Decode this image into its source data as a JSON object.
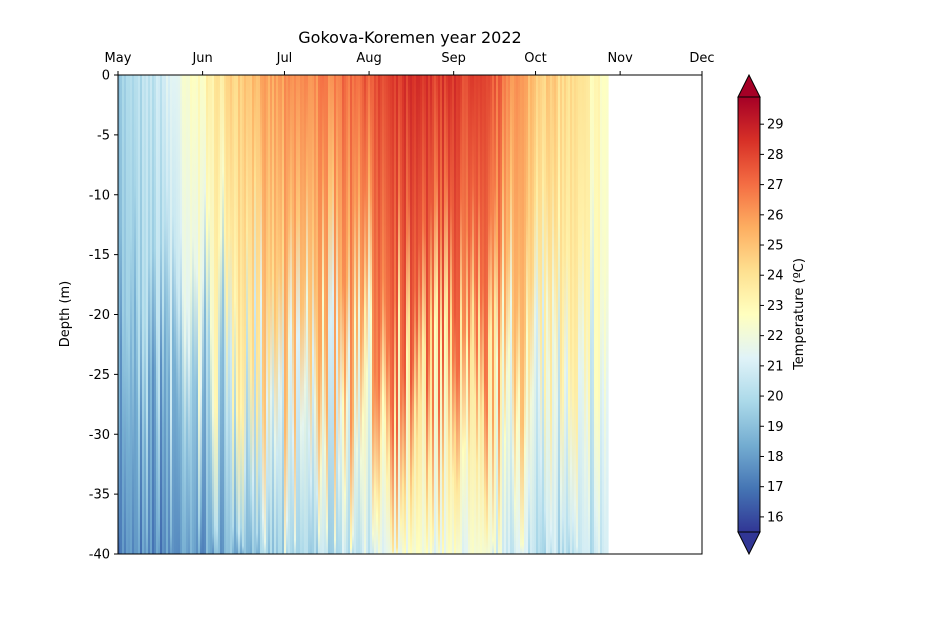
{
  "chart_data": {
    "type": "heatmap",
    "title": "Gokova-Koremen year 2022",
    "xlabel": "",
    "ylabel": "Depth (m)",
    "x_ticks": [
      "May",
      "Jun",
      "Jul",
      "Aug",
      "Sep",
      "Oct",
      "Nov",
      "Dec"
    ],
    "x_axis_position": "top",
    "x_range": [
      "2022-05-01",
      "2022-12-01"
    ],
    "data_end": "2022-10-27",
    "y_ticks": [
      0,
      -5,
      -10,
      -15,
      -20,
      -25,
      -30,
      -35,
      -40
    ],
    "ylim": [
      -40,
      0
    ],
    "colorbar": {
      "label": "Temperature (ºC)",
      "ticks": [
        16,
        17,
        18,
        19,
        20,
        21,
        22,
        23,
        24,
        25,
        26,
        27,
        28,
        29
      ],
      "range": [
        15.5,
        29.9
      ],
      "extend": "both",
      "colormap": "RdYlBu_r"
    },
    "grid": false,
    "surface_temperature_profile": [
      {
        "date": "2022-05-01",
        "surface": 19.5,
        "bottom": 17.5
      },
      {
        "date": "2022-05-15",
        "surface": 20.5,
        "bottom": 17.5
      },
      {
        "date": "2022-06-01",
        "surface": 23.0,
        "bottom": 18.0
      },
      {
        "date": "2022-06-15",
        "surface": 25.0,
        "bottom": 19.0
      },
      {
        "date": "2022-07-01",
        "surface": 26.0,
        "bottom": 19.5
      },
      {
        "date": "2022-07-15",
        "surface": 26.5,
        "bottom": 20.0
      },
      {
        "date": "2022-08-01",
        "surface": 27.5,
        "bottom": 21.0
      },
      {
        "date": "2022-08-15",
        "surface": 28.3,
        "bottom": 22.0
      },
      {
        "date": "2022-09-01",
        "surface": 28.2,
        "bottom": 22.0
      },
      {
        "date": "2022-09-15",
        "surface": 27.5,
        "bottom": 21.5
      },
      {
        "date": "2022-10-01",
        "surface": 25.0,
        "bottom": 20.5
      },
      {
        "date": "2022-10-15",
        "surface": 24.0,
        "bottom": 20.0
      },
      {
        "date": "2022-10-27",
        "surface": 22.5,
        "bottom": 21.0
      }
    ]
  }
}
